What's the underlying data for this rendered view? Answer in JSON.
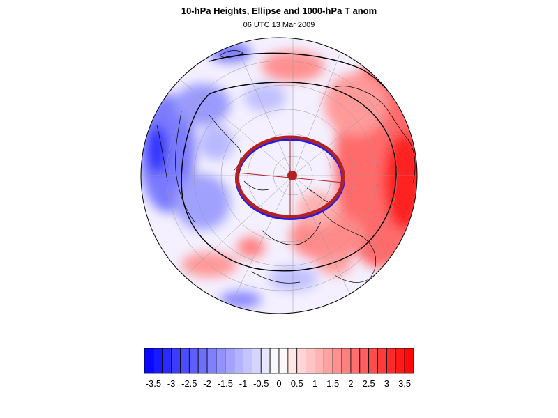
{
  "header": {
    "title": "10-hPa Heights, Ellipse and 1000-hPa T anom",
    "subtitle": "06 UTC 13 Mar 2009"
  },
  "map_data": {
    "projection": "polar-stereographic",
    "hemisphere": "north",
    "field": "1000-hPa T anom",
    "overlay": "10-hPa Heights ellipse"
  },
  "colorbar": {
    "tick_labels": [
      "-3.5",
      "-3",
      "-2.5",
      "-2",
      "-1.5",
      "-1",
      "-0.5",
      "0",
      "0.5",
      "1",
      "1.5",
      "2",
      "2.5",
      "3",
      "3.5"
    ],
    "levels": [
      -3.75,
      -3.5,
      -3.25,
      -3,
      -2.75,
      -2.5,
      -2.25,
      -2,
      -1.75,
      -1.5,
      -1.25,
      -1,
      -0.75,
      -0.5,
      -0.25,
      0,
      0.25,
      0.5,
      0.75,
      1,
      1.25,
      1.5,
      1.75,
      2,
      2.25,
      2.5,
      2.75,
      3,
      3.25,
      3.5,
      3.75
    ],
    "min_color": "#0000ff",
    "mid_color": "#ffffff",
    "max_color": "#ff0000"
  },
  "colors": {
    "ellipse_outer": "#b22222",
    "ellipse_inner": "#1a1aff",
    "contour": "#000000"
  }
}
